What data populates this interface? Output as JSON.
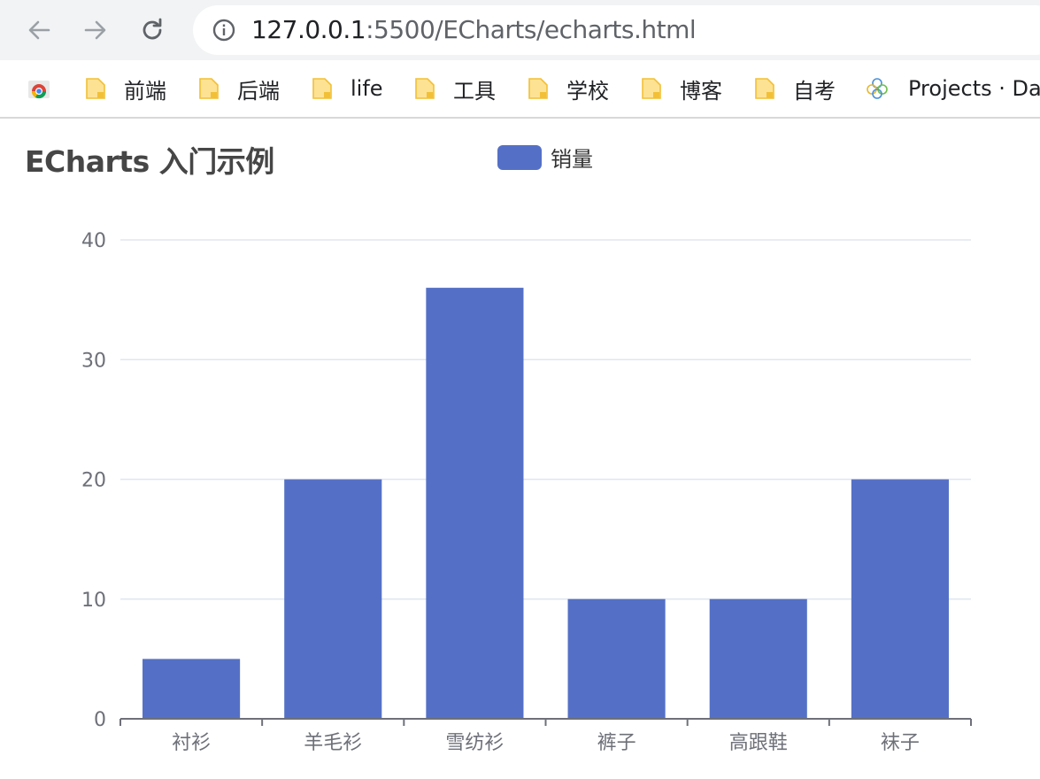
{
  "browser": {
    "url_host": "127.0.0.1",
    "url_rest": ":5500/ECharts/echarts.html",
    "bookmarks": [
      {
        "label": "",
        "icon": "apps-icon"
      },
      {
        "label": "前端",
        "icon": "folder-icon"
      },
      {
        "label": "后端",
        "icon": "folder-icon"
      },
      {
        "label": "life",
        "icon": "folder-icon"
      },
      {
        "label": "工具",
        "icon": "folder-icon"
      },
      {
        "label": "学校",
        "icon": "folder-icon"
      },
      {
        "label": "博客",
        "icon": "folder-icon"
      },
      {
        "label": "自考",
        "icon": "folder-icon"
      },
      {
        "label": "Projects · Das",
        "icon": "site-icon"
      }
    ]
  },
  "chart_data": {
    "type": "bar",
    "title": "ECharts 入门示例",
    "categories": [
      "衬衫",
      "羊毛衫",
      "雪纺衫",
      "裤子",
      "高跟鞋",
      "袜子"
    ],
    "series": [
      {
        "name": "销量",
        "values": [
          5,
          20,
          36,
          10,
          10,
          20
        ],
        "color": "#5470c6"
      }
    ],
    "ylim": [
      0,
      40
    ],
    "yticks": [
      0,
      10,
      20,
      30,
      40
    ],
    "grid": true,
    "legend": "top-center"
  }
}
